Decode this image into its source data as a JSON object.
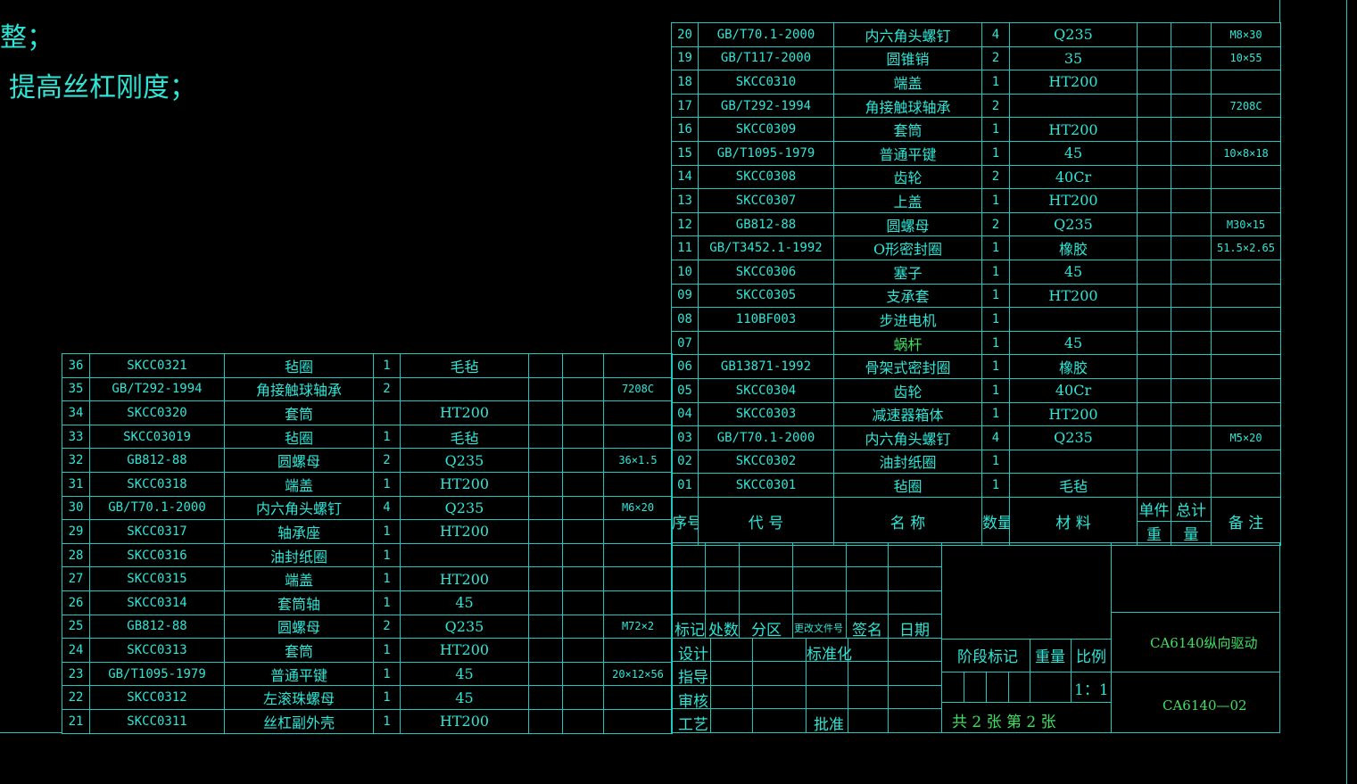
{
  "notes": {
    "line1": "整；",
    "line2": "提高丝杠刚度；"
  },
  "right_rows": [
    {
      "no": "20",
      "code": "GB/T70.1-2000",
      "name": "内六角头螺钉",
      "qty": "4",
      "mat": "Q235",
      "unit": "",
      "total": "",
      "remark": "M8×30"
    },
    {
      "no": "19",
      "code": "GB/T117-2000",
      "name": "圆锥销",
      "qty": "2",
      "mat": "35",
      "unit": "",
      "total": "",
      "remark": "10×55"
    },
    {
      "no": "18",
      "code": "SKCC0310",
      "name": "端盖",
      "qty": "1",
      "mat": "HT200",
      "unit": "",
      "total": "",
      "remark": ""
    },
    {
      "no": "17",
      "code": "GB/T292-1994",
      "name": "角接触球轴承",
      "qty": "2",
      "mat": "",
      "unit": "",
      "total": "",
      "remark": "7208C"
    },
    {
      "no": "16",
      "code": "SKCC0309",
      "name": "套筒",
      "qty": "1",
      "mat": "HT200",
      "unit": "",
      "total": "",
      "remark": ""
    },
    {
      "no": "15",
      "code": "GB/T1095-1979",
      "name": "普通平键",
      "qty": "1",
      "mat": "45",
      "unit": "",
      "total": "",
      "remark": "10×8×18"
    },
    {
      "no": "14",
      "code": "SKCC0308",
      "name": "齿轮",
      "qty": "2",
      "mat": "40Cr",
      "unit": "",
      "total": "",
      "remark": ""
    },
    {
      "no": "13",
      "code": "SKCC0307",
      "name": "上盖",
      "qty": "1",
      "mat": "HT200",
      "unit": "",
      "total": "",
      "remark": ""
    },
    {
      "no": "12",
      "code": "GB812-88",
      "name": "圆螺母",
      "qty": "2",
      "mat": "Q235",
      "unit": "",
      "total": "",
      "remark": "M30×15"
    },
    {
      "no": "11",
      "code": "GB/T3452.1-1992",
      "name": "O形密封圈",
      "qty": "1",
      "mat": "橡胶",
      "unit": "",
      "total": "",
      "remark": "51.5×2.65"
    },
    {
      "no": "10",
      "code": "SKCC0306",
      "name": "塞子",
      "qty": "1",
      "mat": "45",
      "unit": "",
      "total": "",
      "remark": ""
    },
    {
      "no": "09",
      "code": "SKCC0305",
      "name": "支承套",
      "qty": "1",
      "mat": "HT200",
      "unit": "",
      "total": "",
      "remark": ""
    },
    {
      "no": "08",
      "code": "110BF003",
      "name": "步进电机",
      "qty": "1",
      "mat": "",
      "unit": "",
      "total": "",
      "remark": ""
    },
    {
      "no": "07",
      "code": "",
      "name": "蜗杆",
      "qty": "1",
      "mat": "45",
      "unit": "",
      "total": "",
      "remark": "",
      "green": true
    },
    {
      "no": "06",
      "code": "GB13871-1992",
      "name": "骨架式密封圈",
      "qty": "1",
      "mat": "橡胶",
      "unit": "",
      "total": "",
      "remark": ""
    },
    {
      "no": "05",
      "code": "SKCC0304",
      "name": "齿轮",
      "qty": "1",
      "mat": "40Cr",
      "unit": "",
      "total": "",
      "remark": ""
    },
    {
      "no": "04",
      "code": "SKCC0303",
      "name": "减速器箱体",
      "qty": "1",
      "mat": "HT200",
      "unit": "",
      "total": "",
      "remark": ""
    },
    {
      "no": "03",
      "code": "GB/T70.1-2000",
      "name": "内六角头螺钉",
      "qty": "4",
      "mat": "Q235",
      "unit": "",
      "total": "",
      "remark": "M5×20"
    },
    {
      "no": "02",
      "code": "SKCC0302",
      "name": "油封纸圈",
      "qty": "1",
      "mat": "",
      "unit": "",
      "total": "",
      "remark": ""
    },
    {
      "no": "01",
      "code": "SKCC0301",
      "name": "毡圈",
      "qty": "1",
      "mat": "毛毡",
      "unit": "",
      "total": "",
      "remark": ""
    }
  ],
  "left_rows": [
    {
      "no": "36",
      "code": "SKCC0321",
      "name": "毡圈",
      "qty": "1",
      "mat": "毛毡",
      "remark": ""
    },
    {
      "no": "35",
      "code": "GB/T292-1994",
      "name": "角接触球轴承",
      "qty": "2",
      "mat": "",
      "remark": "7208C"
    },
    {
      "no": "34",
      "code": "SKCC0320",
      "name": "套筒",
      "qty": "",
      "mat": "HT200",
      "remark": ""
    },
    {
      "no": "33",
      "code": "SKCC03019",
      "name": "毡圈",
      "qty": "1",
      "mat": "毛毡",
      "remark": ""
    },
    {
      "no": "32",
      "code": "GB812-88",
      "name": "圆螺母",
      "qty": "2",
      "mat": "Q235",
      "remark": "36×1.5"
    },
    {
      "no": "31",
      "code": "SKCC0318",
      "name": "端盖",
      "qty": "1",
      "mat": "HT200",
      "remark": ""
    },
    {
      "no": "30",
      "code": "GB/T70.1-2000",
      "name": "内六角头螺钉",
      "qty": "4",
      "mat": "Q235",
      "remark": "M6×20"
    },
    {
      "no": "29",
      "code": "SKCC0317",
      "name": "轴承座",
      "qty": "1",
      "mat": "HT200",
      "remark": ""
    },
    {
      "no": "28",
      "code": "SKCC0316",
      "name": "油封纸圈",
      "qty": "1",
      "mat": "",
      "remark": ""
    },
    {
      "no": "27",
      "code": "SKCC0315",
      "name": "端盖",
      "qty": "1",
      "mat": "HT200",
      "remark": ""
    },
    {
      "no": "26",
      "code": "SKCC0314",
      "name": "套筒轴",
      "qty": "1",
      "mat": "45",
      "remark": ""
    },
    {
      "no": "25",
      "code": "GB812-88",
      "name": "圆螺母",
      "qty": "2",
      "mat": "Q235",
      "remark": "M72×2"
    },
    {
      "no": "24",
      "code": "SKCC0313",
      "name": "套筒",
      "qty": "1",
      "mat": "HT200",
      "remark": ""
    },
    {
      "no": "23",
      "code": "GB/T1095-1979",
      "name": "普通平键",
      "qty": "1",
      "mat": "45",
      "remark": "20×12×56"
    },
    {
      "no": "22",
      "code": "SKCC0312",
      "name": "左滚珠螺母",
      "qty": "1",
      "mat": "45",
      "remark": ""
    },
    {
      "no": "21",
      "code": "SKCC0311",
      "name": "丝杠副外壳",
      "qty": "1",
      "mat": "HT200",
      "remark": ""
    }
  ],
  "header": {
    "no": "序号",
    "code": "代    号",
    "name": "名    称",
    "qty": "数量",
    "mat": "材    料",
    "unit": "单件",
    "total": "总计",
    "weight_l": "重",
    "weight_r": "量",
    "remark": "备    注"
  },
  "title_block": {
    "mark": "标记",
    "count": "处数",
    "zone": "分区",
    "doc": "更改文件号",
    "sign": "签名",
    "date": "日期",
    "design": "设计",
    "standard": "标准化",
    "check": "指导",
    "audit": "审核",
    "process": "工艺",
    "approve": "批准",
    "stage": "阶段标记",
    "weight": "重量",
    "scale": "比例",
    "scale_val": "1：1",
    "sheets": "共  2  张    第  2  张",
    "title": "CA6140纵向驱动",
    "drawing_no": "CA6140—02"
  }
}
